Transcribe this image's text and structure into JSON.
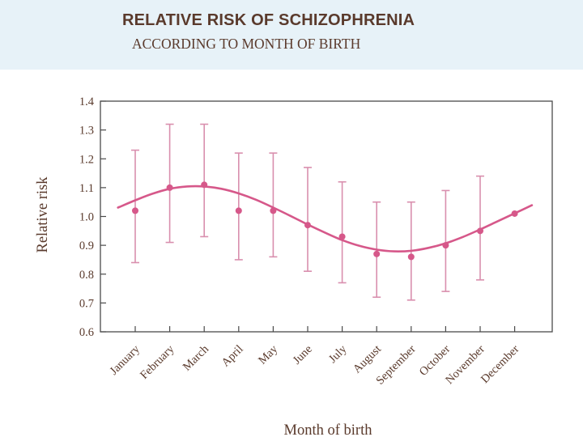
{
  "title": "RELATIVE RISK OF SCHIZOPHRENIA",
  "subtitle": "ACCORDING TO MONTH OF BIRTH",
  "colors": {
    "header_bg": "#e7f2f8",
    "text": "#5a3a2c",
    "series": "#d6588a",
    "error_bar": "#d98fae",
    "axis": "#4a4a4a"
  },
  "chart_data": {
    "type": "scatter",
    "xlabel": "Month of birth",
    "ylabel": "Relative risk",
    "ylim": [
      0.6,
      1.4
    ],
    "yticks": [
      "0.6",
      "0.7",
      "0.8",
      "0.9",
      "1.0",
      "1.1",
      "1.2",
      "1.3",
      "1.4"
    ],
    "grid": false,
    "categories": [
      "January",
      "February",
      "March",
      "April",
      "May",
      "June",
      "July",
      "August",
      "September",
      "October",
      "November",
      "December"
    ],
    "points": [
      1.02,
      1.1,
      1.11,
      1.02,
      1.02,
      0.97,
      0.93,
      0.87,
      0.86,
      0.9,
      0.95,
      1.01
    ],
    "upper": [
      1.23,
      1.32,
      1.32,
      1.22,
      1.22,
      1.17,
      1.12,
      1.05,
      1.05,
      1.09,
      1.14,
      null
    ],
    "lower": [
      0.84,
      0.91,
      0.93,
      0.85,
      0.86,
      0.81,
      0.77,
      0.72,
      0.71,
      0.74,
      0.78,
      null
    ],
    "fit_curve": {
      "x": [
        -0.5,
        0,
        0.5,
        1,
        1.5,
        2,
        2.5,
        3,
        3.5,
        4,
        4.5,
        5,
        5.5,
        6,
        6.5,
        7,
        7.5,
        8,
        8.5,
        9,
        9.5,
        10,
        10.5,
        11,
        11.5
      ],
      "y": [
        1.031,
        1.056,
        1.079,
        1.096,
        1.104,
        1.104,
        1.096,
        1.08,
        1.058,
        1.031,
        1.002,
        0.972,
        0.944,
        0.918,
        0.898,
        0.885,
        0.879,
        0.881,
        0.891,
        0.907,
        0.929,
        0.955,
        0.983,
        1.011,
        1.039
      ]
    }
  }
}
